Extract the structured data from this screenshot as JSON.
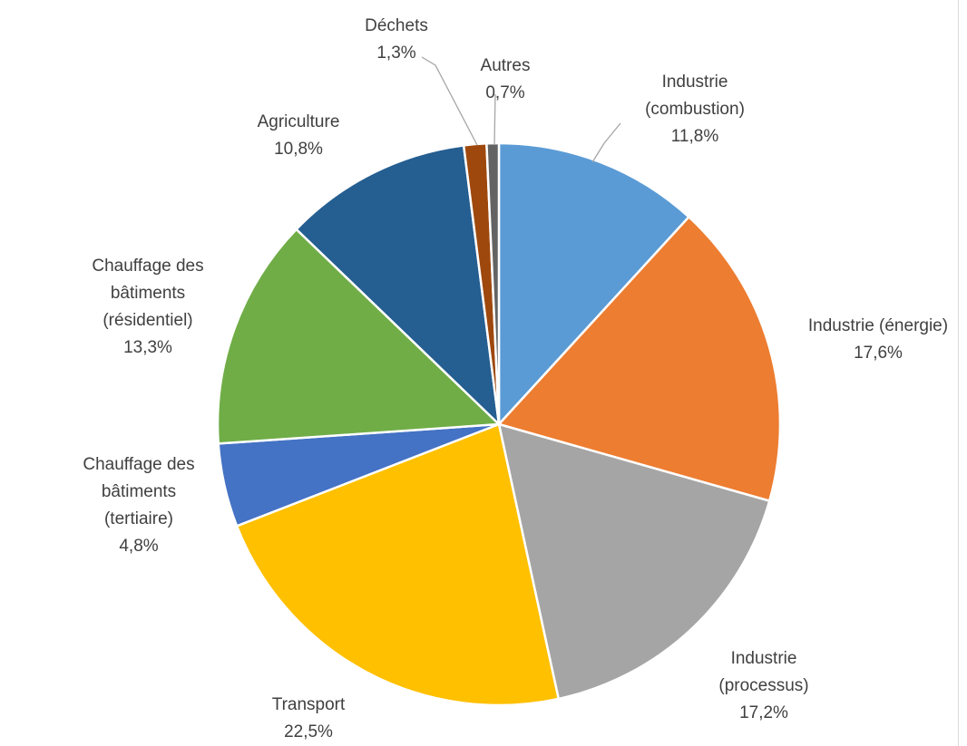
{
  "chart_data": {
    "type": "pie",
    "start_angle_deg": 0,
    "direction": "clockwise",
    "slices": [
      {
        "label_lines": [
          "Industrie",
          "(combustion)"
        ],
        "value": 11.8,
        "value_label": "11,8%",
        "color": "#5B9BD5"
      },
      {
        "label_lines": [
          "Industrie (énergie)"
        ],
        "value": 17.6,
        "value_label": "17,6%",
        "color": "#ED7D31"
      },
      {
        "label_lines": [
          "Industrie",
          "(processus)"
        ],
        "value": 17.2,
        "value_label": "17,2%",
        "color": "#A5A5A5"
      },
      {
        "label_lines": [
          "Transport"
        ],
        "value": 22.5,
        "value_label": "22,5%",
        "color": "#FFC000"
      },
      {
        "label_lines": [
          "Chauffage des",
          "bâtiments",
          "(tertiaire)"
        ],
        "value": 4.8,
        "value_label": "4,8%",
        "color": "#4472C4"
      },
      {
        "label_lines": [
          "Chauffage des",
          "bâtiments",
          "(résidentiel)"
        ],
        "value": 13.3,
        "value_label": "13,3%",
        "color": "#70AD47"
      },
      {
        "label_lines": [
          "Agriculture"
        ],
        "value": 10.8,
        "value_label": "10,8%",
        "color": "#255E91"
      },
      {
        "label_lines": [
          "Déchets"
        ],
        "value": 1.3,
        "value_label": "1,3%",
        "color": "#9E480E"
      },
      {
        "label_lines": [
          "Autres"
        ],
        "value": 0.7,
        "value_label": "0,7%",
        "color": "#636363"
      }
    ]
  }
}
